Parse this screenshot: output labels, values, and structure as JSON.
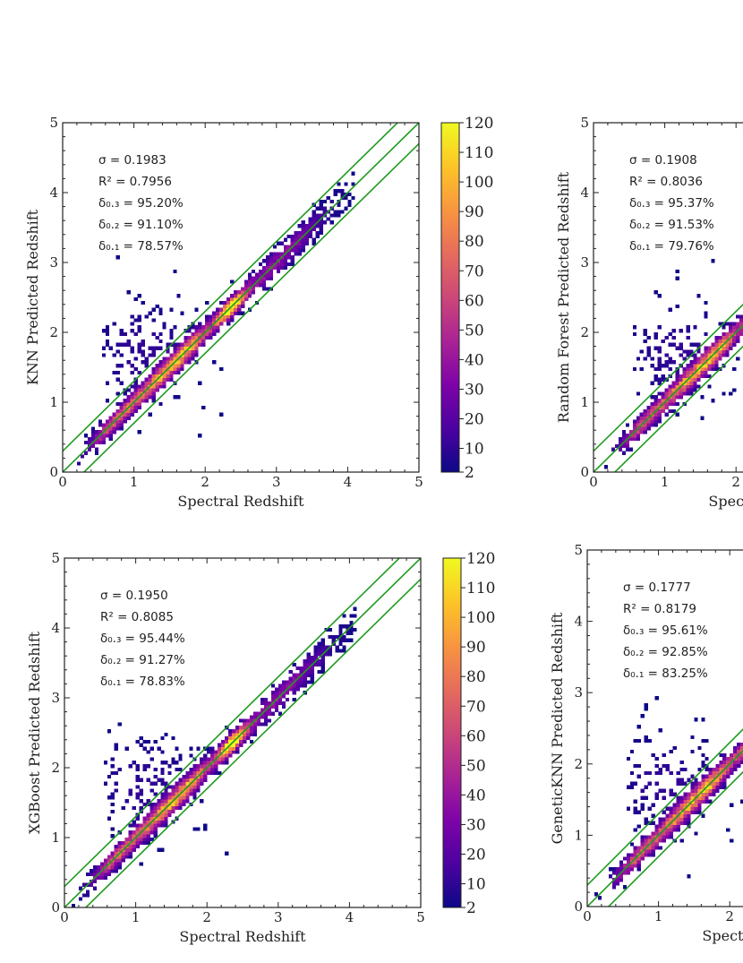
{
  "chart_data": [
    {
      "type": "heatmap",
      "panel": "KNN",
      "xlabel": "Spectral Redshift",
      "ylabel": "KNN Predicted Redshift",
      "xlim": [
        0,
        5
      ],
      "ylim": [
        0,
        5
      ],
      "xticks": [
        "0",
        "1",
        "2",
        "3",
        "4",
        "5"
      ],
      "yticks": [
        "0",
        "1",
        "2",
        "3",
        "4",
        "5"
      ],
      "stats": [
        "σ = 0.1983",
        "R² = 0.7956",
        "δ₀.₃ = 95.20%",
        "δ₀.₂ = 91.10%",
        "δ₀.₁ = 78.57%"
      ],
      "reference_lines": [
        {
          "slope": 1,
          "intercept": 0
        },
        {
          "slope": 1,
          "intercept": 0.3
        },
        {
          "slope": 1,
          "intercept": -0.3
        }
      ],
      "colorbar": {
        "ticks": [
          "2",
          "10",
          "20",
          "30",
          "40",
          "50",
          "60",
          "70",
          "80",
          "90",
          "100",
          "110",
          "120"
        ],
        "min": 2,
        "max": 120
      }
    },
    {
      "type": "heatmap",
      "panel": "Random Forest",
      "xlabel": "Spectral Redshift",
      "ylabel": "Random Forest Predicted Redshift",
      "xlim": [
        0,
        5
      ],
      "ylim": [
        0,
        5
      ],
      "xticks": [
        "0",
        "1",
        "2"
      ],
      "yticks": [
        "0",
        "1",
        "2",
        "3",
        "4",
        "5"
      ],
      "stats": [
        "σ = 0.1908",
        "R² = 0.8036",
        "δ₀.₃ = 95.37%",
        "δ₀.₂ = 91.53%",
        "δ₀.₁ = 79.76%"
      ],
      "reference_lines": [
        {
          "slope": 1,
          "intercept": 0
        },
        {
          "slope": 1,
          "intercept": 0.3
        },
        {
          "slope": 1,
          "intercept": -0.3
        }
      ]
    },
    {
      "type": "heatmap",
      "panel": "XGBoost",
      "xlabel": "Spectral Redshift",
      "ylabel": "XGBoost Predicted Redshift",
      "xlim": [
        0,
        5
      ],
      "ylim": [
        0,
        5
      ],
      "xticks": [
        "0",
        "1",
        "2",
        "3",
        "4",
        "5"
      ],
      "yticks": [
        "0",
        "1",
        "2",
        "3",
        "4",
        "5"
      ],
      "stats": [
        "σ = 0.1950",
        "R² = 0.8085",
        "δ₀.₃ = 95.44%",
        "δ₀.₂ = 91.27%",
        "δ₀.₁ = 78.83%"
      ],
      "reference_lines": [
        {
          "slope": 1,
          "intercept": 0
        },
        {
          "slope": 1,
          "intercept": 0.3
        },
        {
          "slope": 1,
          "intercept": -0.3
        }
      ],
      "colorbar": {
        "ticks": [
          "2",
          "10",
          "20",
          "30",
          "40",
          "50",
          "60",
          "70",
          "80",
          "90",
          "100",
          "110",
          "120"
        ],
        "min": 2,
        "max": 120
      }
    },
    {
      "type": "heatmap",
      "panel": "GeneticKNN",
      "xlabel": "Spectral Redshift",
      "ylabel": "GeneticKNN Predicted Redshift",
      "xlim": [
        0,
        5
      ],
      "ylim": [
        0,
        5
      ],
      "xticks": [
        "0",
        "1",
        "2"
      ],
      "yticks": [
        "0",
        "1",
        "2",
        "3",
        "4",
        "5"
      ],
      "stats": [
        "σ = 0.1777",
        "R² = 0.8179",
        "δ₀.₃ = 95.61%",
        "δ₀.₂ = 92.85%",
        "δ₀.₁ = 83.25%"
      ],
      "reference_lines": [
        {
          "slope": 1,
          "intercept": 0
        },
        {
          "slope": 1,
          "intercept": 0.3
        },
        {
          "slope": 1,
          "intercept": -0.3
        }
      ]
    }
  ],
  "colors": {
    "line": "#1e9a1e",
    "colormap": [
      "#0d0887",
      "#4c02a1",
      "#7e03a8",
      "#a92395",
      "#cc4778",
      "#e66c5c",
      "#f89540",
      "#fdc527",
      "#f0f921"
    ]
  }
}
